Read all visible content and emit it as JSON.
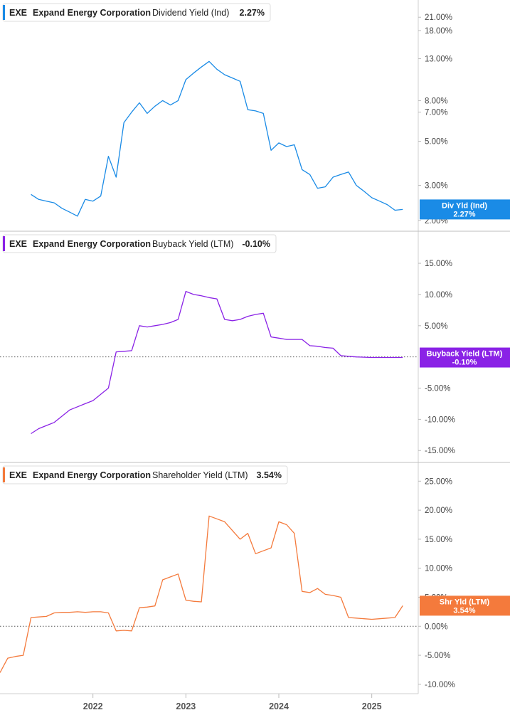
{
  "chart_data": [
    {
      "type": "line",
      "ticker": "EXE",
      "company": "Expand Energy Corporation",
      "metric": "Dividend Yield (Ind)",
      "value_text": "2.27%",
      "end_label": [
        "Div Yld (Ind)",
        "2.27%"
      ],
      "color": "#1a8be6",
      "scale": "log",
      "ylim": [
        1.9,
        24
      ],
      "yticks": [
        "21.00%",
        "18.00%",
        "13.00%",
        "8.00%",
        "7.00%",
        "5.00%",
        "3.00%",
        "2.00%"
      ],
      "ytick_values": [
        21,
        18,
        13,
        8,
        7,
        5,
        3,
        2
      ],
      "zero_line": false,
      "x": [
        "2021-05",
        "2021-06",
        "2021-07",
        "2021-08",
        "2021-09",
        "2021-10",
        "2021-11",
        "2021-12",
        "2022-01",
        "2022-02",
        "2022-03",
        "2022-04",
        "2022-05",
        "2022-06",
        "2022-07",
        "2022-08",
        "2022-09",
        "2022-10",
        "2022-11",
        "2022-12",
        "2023-01",
        "2023-02",
        "2023-03",
        "2023-04",
        "2023-05",
        "2023-06",
        "2023-07",
        "2023-08",
        "2023-09",
        "2023-10",
        "2023-11",
        "2023-12",
        "2024-01",
        "2024-02",
        "2024-03",
        "2024-04",
        "2024-05",
        "2024-06",
        "2024-07",
        "2024-08",
        "2024-09",
        "2024-10",
        "2024-11",
        "2024-12",
        "2025-01",
        "2025-02",
        "2025-03",
        "2025-04",
        "2025-05"
      ],
      "values": [
        2.7,
        2.55,
        2.5,
        2.45,
        2.3,
        2.2,
        2.1,
        2.55,
        2.5,
        2.65,
        4.2,
        3.3,
        6.2,
        7.0,
        7.8,
        6.9,
        7.5,
        8.0,
        7.6,
        8.0,
        10.2,
        11.0,
        11.8,
        12.6,
        11.5,
        10.8,
        10.4,
        10.0,
        7.2,
        7.1,
        6.9,
        4.5,
        4.9,
        4.7,
        4.8,
        3.6,
        3.4,
        2.9,
        2.95,
        3.3,
        3.4,
        3.5,
        3.0,
        2.8,
        2.6,
        2.5,
        2.4,
        2.25,
        2.27
      ]
    },
    {
      "type": "line",
      "ticker": "EXE",
      "company": "Expand Energy Corporation",
      "metric": "Buyback Yield (LTM)",
      "value_text": "-0.10%",
      "end_label": [
        "Buyback Yield (LTM)",
        "-0.10%"
      ],
      "color": "#8a22e6",
      "scale": "linear",
      "ylim": [
        -16,
        19
      ],
      "yticks": [
        "15.00%",
        "10.00%",
        "5.00%",
        "-5.00%",
        "-10.00%",
        "-15.00%"
      ],
      "ytick_values": [
        15,
        10,
        5,
        -5,
        -10,
        -15
      ],
      "zero_line": true,
      "x": [
        "2021-05",
        "2021-06",
        "2021-07",
        "2021-08",
        "2021-09",
        "2021-10",
        "2021-11",
        "2021-12",
        "2022-01",
        "2022-02",
        "2022-03",
        "2022-04",
        "2022-05",
        "2022-06",
        "2022-07",
        "2022-08",
        "2022-09",
        "2022-10",
        "2022-11",
        "2022-12",
        "2023-01",
        "2023-02",
        "2023-03",
        "2023-04",
        "2023-05",
        "2023-06",
        "2023-07",
        "2023-08",
        "2023-09",
        "2023-10",
        "2023-11",
        "2023-12",
        "2024-01",
        "2024-02",
        "2024-03",
        "2024-04",
        "2024-05",
        "2024-06",
        "2024-07",
        "2024-08",
        "2024-09",
        "2024-10",
        "2024-11",
        "2024-12",
        "2025-01",
        "2025-02",
        "2025-03",
        "2025-04",
        "2025-05"
      ],
      "values": [
        -12.3,
        -11.5,
        -11.0,
        -10.5,
        -9.5,
        -8.5,
        -8.0,
        -7.5,
        -7.0,
        -6.0,
        -5.0,
        0.8,
        0.9,
        1.0,
        5.0,
        4.8,
        5.0,
        5.2,
        5.5,
        6.0,
        10.5,
        10.0,
        9.8,
        9.5,
        9.3,
        6.0,
        5.8,
        6.0,
        6.5,
        6.8,
        7.0,
        3.2,
        3.0,
        2.8,
        2.8,
        2.8,
        1.8,
        1.7,
        1.5,
        1.4,
        0.2,
        0.1,
        0.0,
        -0.05,
        -0.1,
        -0.1,
        -0.1,
        -0.1,
        -0.1
      ]
    },
    {
      "type": "line",
      "ticker": "EXE",
      "company": "Expand Energy Corporation",
      "metric": "Shareholder Yield (LTM)",
      "value_text": "3.54%",
      "end_label": [
        "Shr Yld (LTM)",
        "3.54%"
      ],
      "color": "#f47a3c",
      "scale": "linear",
      "ylim": [
        -11,
        27
      ],
      "yticks": [
        "25.00%",
        "20.00%",
        "15.00%",
        "10.00%",
        "5.00%",
        "0.00%",
        "-5.00%",
        "-10.00%"
      ],
      "ytick_values": [
        25,
        20,
        15,
        10,
        5,
        0,
        -5,
        -10
      ],
      "zero_line": true,
      "x": [
        "2021-01",
        "2021-02",
        "2021-03",
        "2021-04",
        "2021-05",
        "2021-06",
        "2021-07",
        "2021-08",
        "2021-09",
        "2021-10",
        "2021-11",
        "2021-12",
        "2022-01",
        "2022-02",
        "2022-03",
        "2022-04",
        "2022-05",
        "2022-06",
        "2022-07",
        "2022-08",
        "2022-09",
        "2022-10",
        "2022-11",
        "2022-12",
        "2023-01",
        "2023-02",
        "2023-03",
        "2023-04",
        "2023-05",
        "2023-06",
        "2023-07",
        "2023-08",
        "2023-09",
        "2023-10",
        "2023-11",
        "2023-12",
        "2024-01",
        "2024-02",
        "2024-03",
        "2024-04",
        "2024-05",
        "2024-06",
        "2024-07",
        "2024-08",
        "2024-09",
        "2024-10",
        "2024-11",
        "2024-12",
        "2025-01",
        "2025-02",
        "2025-03",
        "2025-04",
        "2025-05"
      ],
      "values": [
        -8.0,
        -5.5,
        -5.2,
        -5.0,
        1.5,
        1.6,
        1.7,
        2.3,
        2.4,
        2.4,
        2.5,
        2.4,
        2.5,
        2.5,
        2.3,
        -0.8,
        -0.7,
        -0.8,
        3.2,
        3.3,
        3.5,
        8.0,
        8.5,
        9.0,
        4.5,
        4.3,
        4.2,
        19.0,
        18.5,
        18.0,
        16.5,
        15.0,
        16.0,
        12.5,
        13.0,
        13.5,
        18.0,
        17.5,
        16.0,
        6.0,
        5.8,
        6.5,
        5.5,
        5.3,
        5.0,
        1.5,
        1.4,
        1.3,
        1.2,
        1.3,
        1.4,
        1.5,
        3.54
      ]
    }
  ],
  "x_axis": {
    "labels": [
      "2022",
      "2023",
      "2024",
      "2025"
    ],
    "label_dates": [
      "2022-01",
      "2023-01",
      "2024-01",
      "2025-01"
    ],
    "range": [
      "2021-01",
      "2025-07"
    ]
  }
}
